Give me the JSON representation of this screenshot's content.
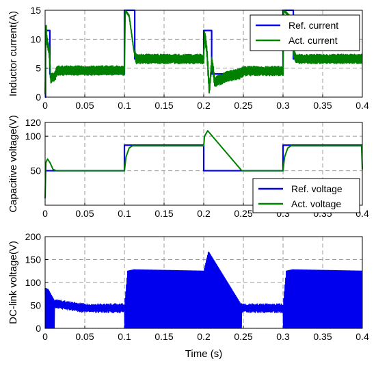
{
  "chart_data": [
    {
      "type": "line",
      "xlabel": "",
      "ylabel": "Inductor current(A)",
      "xlim": [
        0,
        0.4
      ],
      "ylim": [
        0,
        15
      ],
      "xticks": [
        "0",
        "0.05",
        "0.1",
        "0.15",
        "0.2",
        "0.25",
        "0.3",
        "0.35",
        "0.4"
      ],
      "yticks": [
        "0",
        "5",
        "10",
        "15"
      ],
      "grid": true,
      "legend": "top-right",
      "series": [
        {
          "name": "Ref. current",
          "color": "#0000ee",
          "x": [
            0,
            0.0005,
            0.0005,
            0.006,
            0.006,
            0.1,
            0.1,
            0.113,
            0.113,
            0.2,
            0.2,
            0.21,
            0.21,
            0.3,
            0.3,
            0.313,
            0.313,
            0.4
          ],
          "y": [
            0,
            0,
            11.5,
            11.5,
            4,
            4,
            15,
            15,
            6.6,
            6.6,
            11.5,
            11.5,
            4,
            4,
            15,
            15,
            6.6,
            6.6
          ]
        },
        {
          "name": "Act. current",
          "color": "#008000",
          "x": [
            0,
            0.001,
            0.002,
            0.005,
            0.007,
            0.012,
            0.015,
            0.1,
            0.101,
            0.106,
            0.112,
            0.115,
            0.2,
            0.201,
            0.204,
            0.207,
            0.21,
            0.212,
            0.214,
            0.22,
            0.23,
            0.245,
            0.25,
            0.3,
            0.301,
            0.308,
            0.313,
            0.316,
            0.4
          ],
          "y": [
            0,
            13,
            10,
            8,
            3.2,
            3.5,
            4.6,
            4.6,
            15,
            14,
            8,
            6.6,
            6.6,
            11,
            8,
            1,
            6,
            4.5,
            2.5,
            3,
            3.6,
            4,
            4.5,
            4.5,
            15,
            14,
            8,
            6.6,
            6.6
          ]
        }
      ]
    },
    {
      "type": "line",
      "xlabel": "",
      "ylabel": "Capacitive voltage(V)",
      "xlim": [
        0,
        0.4
      ],
      "ylim": [
        0,
        120
      ],
      "xticks": [
        "0",
        "0.05",
        "0.1",
        "0.15",
        "0.2",
        "0.25",
        "0.3",
        "0.35",
        "0.4"
      ],
      "yticks": [
        "50",
        "100",
        "120"
      ],
      "grid": true,
      "legend": "bottom-right",
      "series": [
        {
          "name": "Ref. voltage",
          "color": "#0000ee",
          "x": [
            0,
            0.1,
            0.1,
            0.2,
            0.2,
            0.3,
            0.3,
            0.4
          ],
          "y": [
            50,
            50,
            87,
            87,
            50,
            50,
            87,
            87
          ]
        },
        {
          "name": "Act. voltage",
          "color": "#008000",
          "x": [
            0,
            0.001,
            0.003,
            0.006,
            0.01,
            0.014,
            0.1,
            0.102,
            0.106,
            0.11,
            0.2,
            0.201,
            0.205,
            0.248,
            0.3,
            0.302,
            0.306,
            0.31,
            0.399,
            0.4
          ],
          "y": [
            10,
            62,
            67,
            62,
            52,
            50,
            50,
            70,
            83,
            86,
            86,
            100,
            108,
            50,
            50,
            70,
            83,
            86,
            86,
            52
          ]
        }
      ]
    },
    {
      "type": "line",
      "xlabel": "Time (s)",
      "ylabel": "DC-link voltage(V)",
      "xlim": [
        0,
        0.4
      ],
      "ylim": [
        0,
        200
      ],
      "xticks": [
        "0",
        "0.05",
        "0.1",
        "0.15",
        "0.2",
        "0.25",
        "0.3",
        "0.35",
        "0.4"
      ],
      "yticks": [
        "0",
        "50",
        "100",
        "150",
        "200"
      ],
      "grid": true,
      "series": [
        {
          "name": "",
          "color": "#0000ee",
          "x": [
            0,
            0.004,
            0.012,
            0.05,
            0.1,
            0.104,
            0.112,
            0.2,
            0.206,
            0.248,
            0.25,
            0.3,
            0.304,
            0.312,
            0.4
          ],
          "y": [
            88,
            85,
            60,
            50,
            50,
            125,
            128,
            125,
            168,
            50,
            50,
            50,
            125,
            128,
            125
          ]
        }
      ]
    }
  ]
}
